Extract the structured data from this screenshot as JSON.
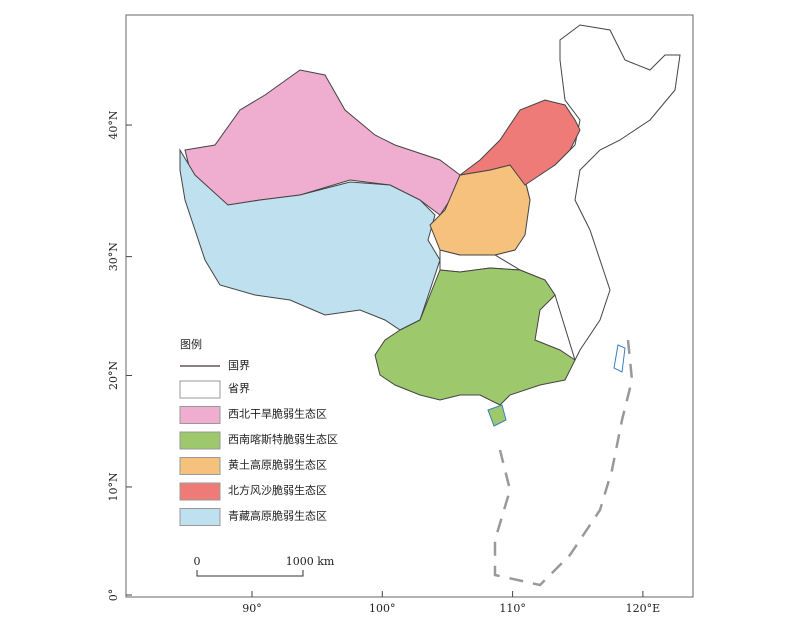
{
  "map": {
    "lat_ticks": [
      {
        "value": 0,
        "label": "0°"
      },
      {
        "value": 10,
        "label": "10°N"
      },
      {
        "value": 20,
        "label": "20°N"
      },
      {
        "value": 30,
        "label": "30°N"
      },
      {
        "value": 40,
        "label": "40°N"
      }
    ],
    "lon_ticks": [
      {
        "value": 90,
        "label": "90°"
      },
      {
        "value": 100,
        "label": "100°"
      },
      {
        "value": 110,
        "label": "110°"
      },
      {
        "value": 120,
        "label": "120°E"
      }
    ],
    "legend": {
      "title": "图例",
      "items": [
        {
          "label": "国界",
          "color": "#8c7f7f"
        },
        {
          "label": "省界",
          "color": "#ffffff"
        },
        {
          "label": "西北干旱脆弱生态区",
          "color": "#efaecf"
        },
        {
          "label": "西南喀斯特脆弱生态区",
          "color": "#9dc86b"
        },
        {
          "label": "黄土高原脆弱生态区",
          "color": "#f6c17d"
        },
        {
          "label": "北方风沙脆弱生态区",
          "color": "#ee7b78"
        },
        {
          "label": "青藏高原脆弱生态区",
          "color": "#bfe0ee"
        }
      ]
    },
    "scale_bar": {
      "start": "0",
      "end": "1000 km"
    }
  }
}
